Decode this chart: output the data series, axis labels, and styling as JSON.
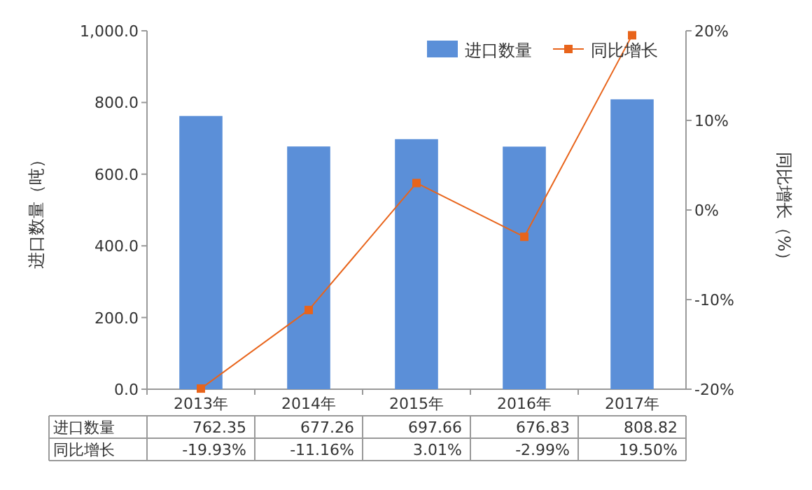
{
  "chart_data": {
    "type": "bar",
    "categories": [
      "2013年",
      "2014年",
      "2015年",
      "2016年",
      "2017年"
    ],
    "ylabel": "进口数量（吨）",
    "y2label": "同比增长（%）",
    "ylim": [
      0,
      1000
    ],
    "yticks": [
      {
        "value": 0,
        "label": "0.0"
      },
      {
        "value": 200,
        "label": "200.0"
      },
      {
        "value": 400,
        "label": "400.0"
      },
      {
        "value": 600,
        "label": "600.0"
      },
      {
        "value": 800,
        "label": "800.0"
      },
      {
        "value": 1000,
        "label": "1,000.0"
      }
    ],
    "y2lim": [
      -20,
      20
    ],
    "y2ticks": [
      {
        "value": -20,
        "label": "-20%"
      },
      {
        "value": -10,
        "label": "-10%"
      },
      {
        "value": 0,
        "label": "0%"
      },
      {
        "value": 10,
        "label": "10%"
      },
      {
        "value": 20,
        "label": "20%"
      }
    ],
    "legend": "top right",
    "grid": false,
    "series": [
      {
        "name": "进口数量",
        "color": "#5b8fd8",
        "values": [
          762.35,
          677.26,
          697.66,
          676.83,
          808.82
        ],
        "value_labels": [
          "762.35",
          "677.26",
          "697.66",
          "676.83",
          "808.82"
        ]
      },
      {
        "name": "同比增长",
        "type": "line",
        "axis": "y2",
        "marker": "square",
        "color": "#e8641b",
        "values": [
          -19.93,
          -11.16,
          3.01,
          -2.99,
          19.5
        ],
        "value_labels": [
          "-19.93%",
          "-11.16%",
          "3.01%",
          "-2.99%",
          "19.50%"
        ]
      }
    ]
  }
}
